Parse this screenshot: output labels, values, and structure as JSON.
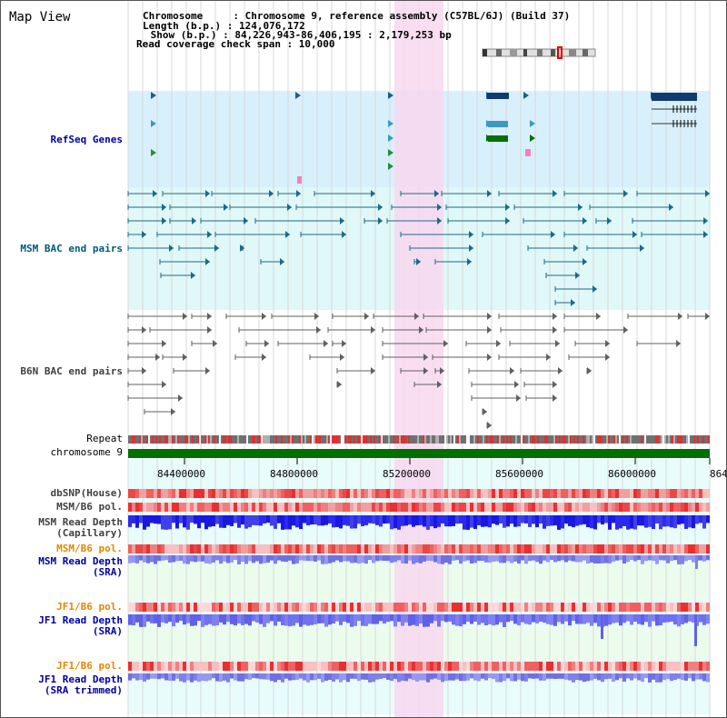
{
  "header": {
    "title": "Map View",
    "chromosome_line": "Chromosome     : Chromosome 9, reference assembly (C57BL/6J) (Build 37)",
    "length_line": "Length (b.p.) : 124,076,172",
    "show_line": " Show (b.p.) : 84,226,943-86,406,195 : 2,179,253 bp",
    "coverage_line": "Read coverage check span : 10,000"
  },
  "tracks": {
    "refseq": "RefSeq Genes",
    "msm_bac": "MSM BAC end pairs",
    "b6n_bac": "B6N BAC end pairs",
    "repeat": "Repeat",
    "chromosome": "chromosome 9",
    "dbsnp": "dbSNP(House)",
    "msm_b6_pol_1": "MSM/B6 pol.",
    "msm_read_depth_cap_1": "MSM Read Depth",
    "msm_read_depth_cap_2": "(Capillary)",
    "msm_b6_pol_2": "MSM/B6 pol.",
    "msm_read_depth_sra_1": "MSM Read Depth",
    "msm_read_depth_sra_2": "(SRA)",
    "jf1_b6_pol_1": "JF1/B6 pol.",
    "jf1_read_depth_sra_1": "JF1 Read Depth",
    "jf1_read_depth_sra_2": "(SRA)",
    "jf1_b6_pol_2": "JF1/B6 pol.",
    "jf1_read_depth_trim_1": "JF1 Read Depth",
    "jf1_read_depth_trim_2": "(SRA trimmed)"
  },
  "axis": {
    "ticks": [
      "84400000",
      "84800000",
      "85200000",
      "85600000",
      "86000000",
      "864"
    ]
  },
  "colors": {
    "highlight": "#f8d8f0",
    "refseq_bg": "#d8f0fc",
    "msm_bac_bg": "#e0f8f8",
    "chromosome_bar": "#007000",
    "label_blue": "#0000a0",
    "label_orange": "#e08800",
    "label_teal": "#005878",
    "label_gray": "#404040",
    "depth_blue": "#2020e0",
    "depth_lightblue": "#8080f0"
  }
}
